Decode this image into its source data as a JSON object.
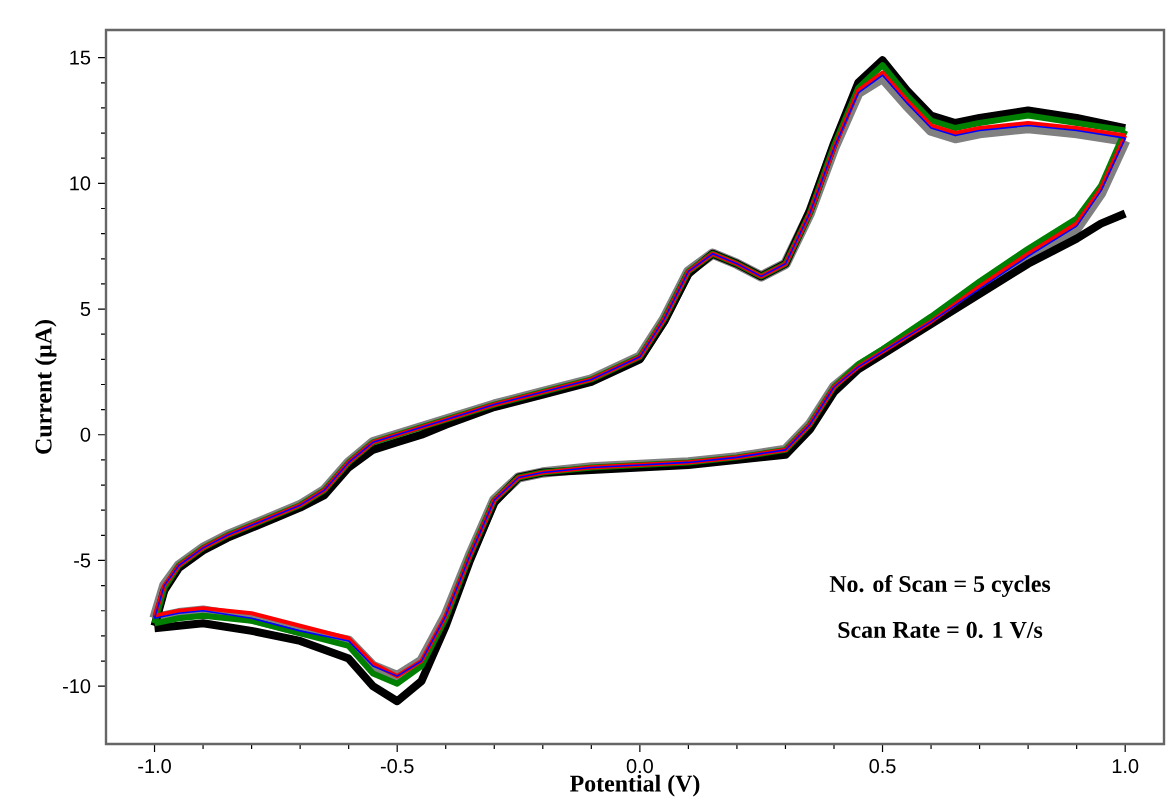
{
  "chart_data": {
    "type": "line",
    "xlabel": "Potential (V)",
    "ylabel": "Current (μA)",
    "annotations": [
      "No. of Scan = 5 cycles",
      "Scan Rate = 0. 1 V/s"
    ],
    "xlim": [
      -1.1,
      1.08
    ],
    "ylim": [
      -12.3,
      16.1
    ],
    "xticks": [
      {
        "value": -1.0,
        "label": "-1.0"
      },
      {
        "value": -0.5,
        "label": "-0.5"
      },
      {
        "value": 0.0,
        "label": "0.0"
      },
      {
        "value": 0.5,
        "label": "0.5"
      },
      {
        "value": 1.0,
        "label": "1.0"
      }
    ],
    "yticks": [
      -10,
      -5,
      0,
      5,
      10,
      15
    ],
    "grid": false,
    "marker": "none",
    "line_style": "solid",
    "series": [
      {
        "color": "#808080",
        "x": [
          -1.0,
          -0.98,
          -0.95,
          -0.9,
          -0.85,
          -0.8,
          -0.75,
          -0.7,
          -0.65,
          -0.6,
          -0.55,
          -0.5,
          -0.45,
          -0.4,
          -0.3,
          -0.2,
          -0.1,
          0.0,
          0.05,
          0.1,
          0.15,
          0.2,
          0.25,
          0.3,
          0.35,
          0.4,
          0.45,
          0.5,
          0.55,
          0.6,
          0.65,
          0.7,
          0.8,
          0.9,
          1.0
        ],
        "values": [
          -7.3,
          -6.0,
          -5.2,
          -4.5,
          -4.0,
          -3.6,
          -3.2,
          -2.8,
          -2.2,
          -1.1,
          -0.3,
          0.0,
          0.3,
          0.6,
          1.2,
          1.7,
          2.2,
          3.1,
          4.6,
          6.5,
          7.2,
          6.8,
          6.3,
          6.8,
          8.8,
          11.4,
          13.6,
          14.2,
          13.1,
          12.1,
          11.8,
          12.0,
          12.2,
          12.0,
          11.7
        ]
      },
      {
        "color": "#808080",
        "x": [
          1.0,
          0.95,
          0.9,
          0.8,
          0.7,
          0.6,
          0.5,
          0.45,
          0.4,
          0.35,
          0.3,
          0.2,
          0.1,
          0.0,
          -0.1,
          -0.2,
          -0.25,
          -0.3,
          -0.35,
          -0.4,
          -0.45,
          -0.5,
          -0.55,
          -0.6,
          -0.7,
          -0.8,
          -0.9,
          -0.95,
          -1.0
        ],
        "values": [
          11.7,
          9.6,
          8.2,
          7.1,
          5.8,
          4.5,
          3.3,
          2.7,
          1.9,
          0.4,
          -0.6,
          -0.9,
          -1.1,
          -1.2,
          -1.3,
          -1.5,
          -1.7,
          -2.6,
          -4.8,
          -7.2,
          -9.0,
          -9.6,
          -9.2,
          -8.2,
          -7.8,
          -7.3,
          -7.0,
          -7.1,
          -7.3
        ]
      },
      {
        "color": "#000000",
        "x": [
          -1.0,
          -0.98,
          -0.95,
          -0.9,
          -0.85,
          -0.8,
          -0.75,
          -0.7,
          -0.65,
          -0.6,
          -0.55,
          -0.5,
          -0.45,
          -0.4,
          -0.3,
          -0.2,
          -0.1,
          0.0,
          0.05,
          0.1,
          0.15,
          0.2,
          0.25,
          0.3,
          0.35,
          0.4,
          0.45,
          0.5,
          0.55,
          0.6,
          0.65,
          0.7,
          0.8,
          0.9,
          1.0
        ],
        "values": [
          -7.6,
          -6.2,
          -5.3,
          -4.6,
          -4.1,
          -3.7,
          -3.3,
          -2.9,
          -2.4,
          -1.3,
          -0.6,
          -0.3,
          0.0,
          0.4,
          1.1,
          1.6,
          2.1,
          3.0,
          4.5,
          6.4,
          7.2,
          6.8,
          6.3,
          6.8,
          8.9,
          11.6,
          14.0,
          14.9,
          13.7,
          12.7,
          12.4,
          12.6,
          12.9,
          12.6,
          12.2
        ]
      },
      {
        "color": "#000000",
        "x": [
          1.0,
          0.95,
          0.9,
          0.8,
          0.7,
          0.6,
          0.5,
          0.45,
          0.4,
          0.35,
          0.3,
          0.2,
          0.1,
          0.0,
          -0.1,
          -0.2,
          -0.25,
          -0.3,
          -0.35,
          -0.4,
          -0.45,
          -0.5,
          -0.55,
          -0.6,
          -0.7,
          -0.8,
          -0.9,
          -0.95,
          -1.0
        ],
        "values": [
          8.8,
          8.4,
          7.8,
          6.8,
          5.6,
          4.4,
          3.2,
          2.6,
          1.7,
          0.2,
          -0.8,
          -1.0,
          -1.2,
          -1.3,
          -1.4,
          -1.5,
          -1.7,
          -2.7,
          -5.0,
          -7.6,
          -9.8,
          -10.6,
          -10.0,
          -8.9,
          -8.2,
          -7.8,
          -7.5,
          -7.6,
          -7.7
        ]
      },
      {
        "color": "#008000",
        "x": [
          -1.0,
          -0.98,
          -0.95,
          -0.9,
          -0.85,
          -0.8,
          -0.75,
          -0.7,
          -0.65,
          -0.6,
          -0.55,
          -0.5,
          -0.45,
          -0.4,
          -0.3,
          -0.2,
          -0.1,
          0.0,
          0.05,
          0.1,
          0.15,
          0.2,
          0.25,
          0.3,
          0.35,
          0.4,
          0.45,
          0.5,
          0.55,
          0.6,
          0.65,
          0.7,
          0.8,
          0.9,
          1.0
        ],
        "values": [
          -7.5,
          -6.1,
          -5.2,
          -4.5,
          -4.0,
          -3.6,
          -3.2,
          -2.8,
          -2.2,
          -1.1,
          -0.3,
          0.0,
          0.3,
          0.6,
          1.2,
          1.7,
          2.2,
          3.1,
          4.6,
          6.5,
          7.2,
          6.8,
          6.3,
          6.8,
          8.8,
          11.5,
          13.8,
          14.7,
          13.5,
          12.5,
          12.2,
          12.4,
          12.7,
          12.4,
          12.1
        ]
      },
      {
        "color": "#008000",
        "x": [
          1.0,
          0.95,
          0.9,
          0.8,
          0.7,
          0.6,
          0.5,
          0.45,
          0.4,
          0.35,
          0.3,
          0.2,
          0.1,
          0.0,
          -0.1,
          -0.2,
          -0.25,
          -0.3,
          -0.35,
          -0.4,
          -0.45,
          -0.5,
          -0.55,
          -0.6,
          -0.7,
          -0.8,
          -0.9,
          -0.95,
          -1.0
        ],
        "values": [
          12.1,
          9.9,
          8.6,
          7.4,
          6.1,
          4.7,
          3.4,
          2.8,
          1.9,
          0.4,
          -0.6,
          -0.9,
          -1.1,
          -1.2,
          -1.3,
          -1.5,
          -1.7,
          -2.6,
          -4.8,
          -7.3,
          -9.2,
          -9.9,
          -9.5,
          -8.4,
          -7.9,
          -7.4,
          -7.2,
          -7.3,
          -7.5
        ]
      },
      {
        "color": "#ff0000",
        "x": [
          -1.0,
          -0.98,
          -0.95,
          -0.9,
          -0.85,
          -0.8,
          -0.75,
          -0.7,
          -0.65,
          -0.6,
          -0.55,
          -0.5,
          -0.45,
          -0.4,
          -0.3,
          -0.2,
          -0.1,
          0.0,
          0.05,
          0.1,
          0.15,
          0.2,
          0.25,
          0.3,
          0.35,
          0.4,
          0.45,
          0.5,
          0.55,
          0.6,
          0.65,
          0.7,
          0.8,
          0.9,
          1.0
        ],
        "values": [
          -7.2,
          -6.0,
          -5.2,
          -4.5,
          -4.0,
          -3.6,
          -3.2,
          -2.8,
          -2.2,
          -1.1,
          -0.3,
          0.0,
          0.3,
          0.6,
          1.2,
          1.7,
          2.2,
          3.1,
          4.6,
          6.5,
          7.2,
          6.8,
          6.3,
          6.8,
          8.8,
          11.4,
          13.7,
          14.4,
          13.3,
          12.3,
          12.0,
          12.2,
          12.4,
          12.2,
          11.9
        ]
      },
      {
        "color": "#ff0000",
        "x": [
          1.0,
          0.95,
          0.9,
          0.8,
          0.7,
          0.6,
          0.5,
          0.45,
          0.4,
          0.35,
          0.3,
          0.2,
          0.1,
          0.0,
          -0.1,
          -0.2,
          -0.25,
          -0.3,
          -0.35,
          -0.4,
          -0.45,
          -0.5,
          -0.55,
          -0.6,
          -0.7,
          -0.8,
          -0.9,
          -0.95,
          -1.0
        ],
        "values": [
          11.9,
          9.8,
          8.4,
          7.2,
          5.9,
          4.5,
          3.3,
          2.7,
          1.9,
          0.4,
          -0.6,
          -0.9,
          -1.1,
          -1.2,
          -1.3,
          -1.5,
          -1.7,
          -2.6,
          -4.8,
          -7.2,
          -9.0,
          -9.6,
          -9.1,
          -8.1,
          -7.6,
          -7.1,
          -6.9,
          -7.0,
          -7.2
        ]
      },
      {
        "color": "#0000ff",
        "x": [
          -1.0,
          -0.98,
          -0.95,
          -0.9,
          -0.85,
          -0.8,
          -0.75,
          -0.7,
          -0.65,
          -0.6,
          -0.55,
          -0.5,
          -0.45,
          -0.4,
          -0.3,
          -0.2,
          -0.1,
          0.0,
          0.05,
          0.1,
          0.15,
          0.2,
          0.25,
          0.3,
          0.35,
          0.4,
          0.45,
          0.5,
          0.55,
          0.6,
          0.65,
          0.7,
          0.8,
          0.9,
          1.0
        ],
        "values": [
          -7.3,
          -6.0,
          -5.2,
          -4.5,
          -4.0,
          -3.6,
          -3.2,
          -2.8,
          -2.2,
          -1.1,
          -0.3,
          0.0,
          0.3,
          0.6,
          1.2,
          1.7,
          2.2,
          3.1,
          4.6,
          6.5,
          7.2,
          6.8,
          6.3,
          6.8,
          8.8,
          11.4,
          13.6,
          14.3,
          13.2,
          12.2,
          11.9,
          12.1,
          12.3,
          12.1,
          11.8
        ]
      },
      {
        "color": "#0000ff",
        "x": [
          1.0,
          0.95,
          0.9,
          0.8,
          0.7,
          0.6,
          0.5,
          0.45,
          0.4,
          0.35,
          0.3,
          0.2,
          0.1,
          0.0,
          -0.1,
          -0.2,
          -0.25,
          -0.3,
          -0.35,
          -0.4,
          -0.45,
          -0.5,
          -0.55,
          -0.6,
          -0.7,
          -0.8,
          -0.9,
          -0.95,
          -1.0
        ],
        "values": [
          11.8,
          9.7,
          8.3,
          7.1,
          5.8,
          4.5,
          3.3,
          2.7,
          1.9,
          0.4,
          -0.6,
          -0.9,
          -1.1,
          -1.2,
          -1.3,
          -1.5,
          -1.7,
          -2.6,
          -4.8,
          -7.2,
          -9.0,
          -9.6,
          -9.2,
          -8.2,
          -7.8,
          -7.3,
          -7.0,
          -7.1,
          -7.3
        ]
      }
    ]
  }
}
